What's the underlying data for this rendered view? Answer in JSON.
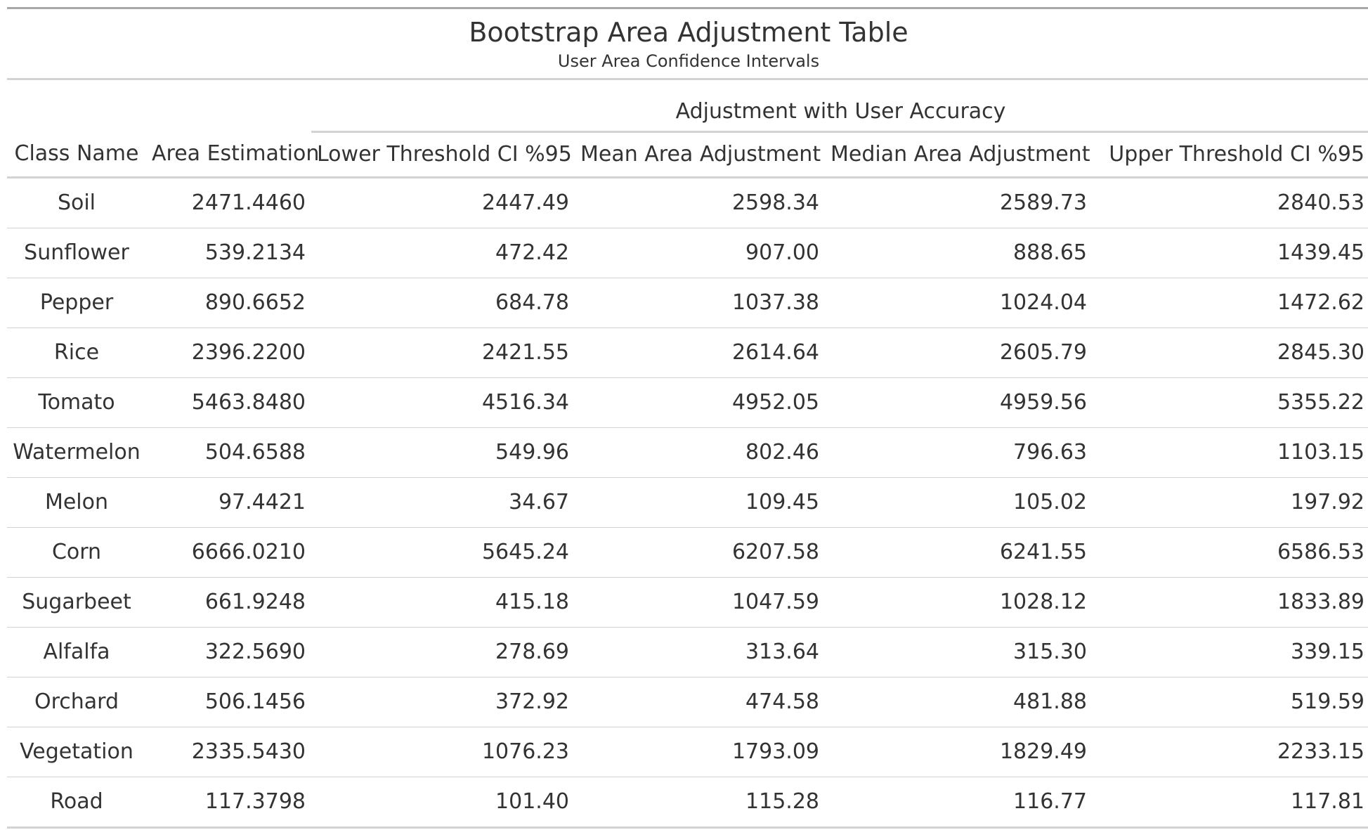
{
  "table": {
    "title": "Bootstrap Area Adjustment Table",
    "subtitle": "User Area Confidence Intervals",
    "spanner": "Adjustment with User Accuracy",
    "columns": [
      "Class Name",
      "Area Estimation",
      "Lower Threshold CI %95",
      "Mean Area Adjustment",
      "Median Area Adjustment",
      "Upper Threshold CI %95"
    ],
    "rows": [
      [
        "Soil",
        "2471.4460",
        "2447.49",
        "2598.34",
        "2589.73",
        "2840.53"
      ],
      [
        "Sunflower",
        "539.2134",
        "472.42",
        "907.00",
        "888.65",
        "1439.45"
      ],
      [
        "Pepper",
        "890.6652",
        "684.78",
        "1037.38",
        "1024.04",
        "1472.62"
      ],
      [
        "Rice",
        "2396.2200",
        "2421.55",
        "2614.64",
        "2605.79",
        "2845.30"
      ],
      [
        "Tomato",
        "5463.8480",
        "4516.34",
        "4952.05",
        "4959.56",
        "5355.22"
      ],
      [
        "Watermelon",
        "504.6588",
        "549.96",
        "802.46",
        "796.63",
        "1103.15"
      ],
      [
        "Melon",
        "97.4421",
        "34.67",
        "109.45",
        "105.02",
        "197.92"
      ],
      [
        "Corn",
        "6666.0210",
        "5645.24",
        "6207.58",
        "6241.55",
        "6586.53"
      ],
      [
        "Sugarbeet",
        "661.9248",
        "415.18",
        "1047.59",
        "1028.12",
        "1833.89"
      ],
      [
        "Alfalfa",
        "322.5690",
        "278.69",
        "313.64",
        "315.30",
        "339.15"
      ],
      [
        "Orchard",
        "506.1456",
        "372.92",
        "474.58",
        "481.88",
        "519.59"
      ],
      [
        "Vegetation",
        "2335.5430",
        "1076.23",
        "1793.09",
        "1829.49",
        "2233.15"
      ],
      [
        "Road",
        "117.3798",
        "101.40",
        "115.28",
        "116.77",
        "117.81"
      ]
    ]
  }
}
